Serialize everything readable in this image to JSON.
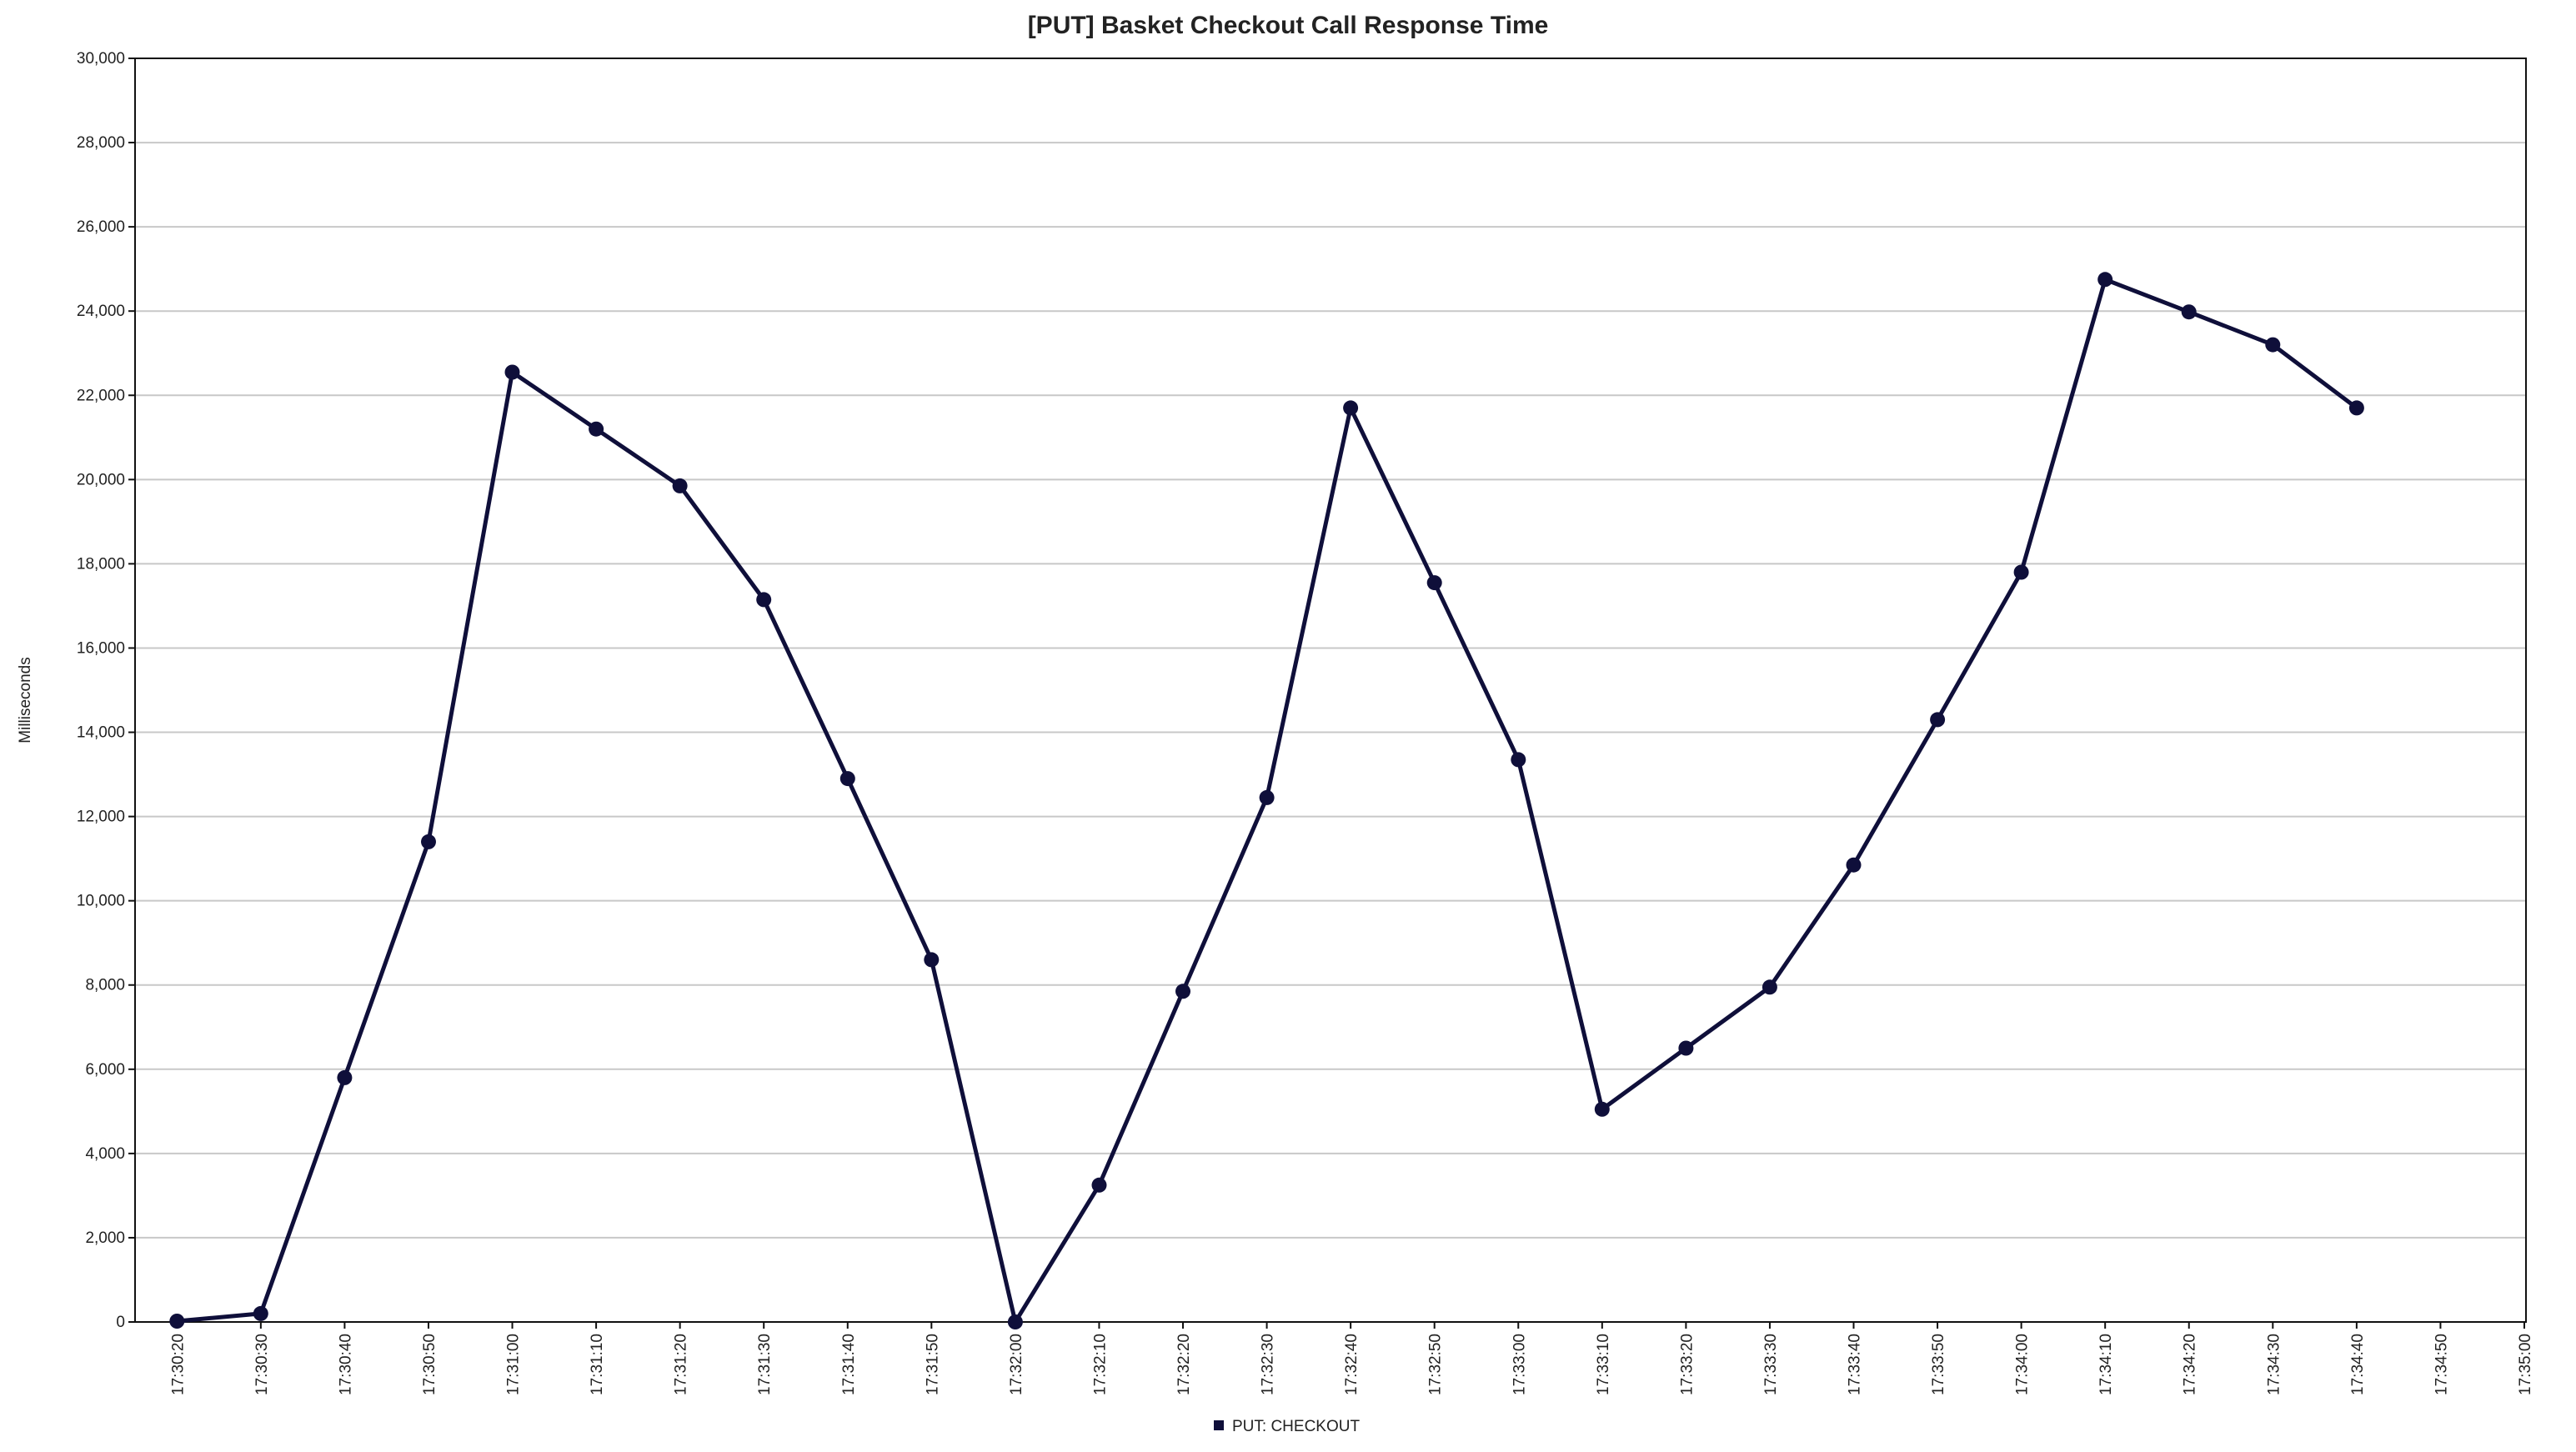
{
  "chart_data": {
    "type": "line",
    "title": "[PUT] Basket Checkout Call Response Time",
    "xlabel": "",
    "ylabel": "Milliseconds",
    "ylim": [
      0,
      30000
    ],
    "y_ticks": [
      "0",
      "2,000",
      "4,000",
      "6,000",
      "8,000",
      "10,000",
      "12,000",
      "14,000",
      "16,000",
      "18,000",
      "20,000",
      "22,000",
      "24,000",
      "26,000",
      "28,000",
      "30,000"
    ],
    "categories": [
      "17:30:20",
      "17:30:30",
      "17:30:40",
      "17:30:50",
      "17:31:00",
      "17:31:10",
      "17:31:20",
      "17:31:30",
      "17:31:40",
      "17:31:50",
      "17:32:00",
      "17:32:10",
      "17:32:20",
      "17:32:30",
      "17:32:40",
      "17:32:50",
      "17:33:00",
      "17:33:10",
      "17:33:20",
      "17:33:30",
      "17:33:40",
      "17:33:50",
      "17:34:00",
      "17:34:10",
      "17:34:20",
      "17:34:30",
      "17:34:40",
      "17:34:50",
      "17:35:00"
    ],
    "grid": "horizontal",
    "legend_position": "bottom",
    "series": [
      {
        "name": "PUT: CHECKOUT",
        "color": "#0f0f3a",
        "values": [
          20,
          200,
          5800,
          11400,
          22550,
          21200,
          19850,
          17150,
          12900,
          8600,
          0,
          3250,
          7850,
          12450,
          21700,
          17550,
          13350,
          5050,
          6500,
          7950,
          10850,
          14300,
          17800,
          24750,
          23980,
          23200,
          21700,
          null,
          null
        ]
      }
    ]
  }
}
